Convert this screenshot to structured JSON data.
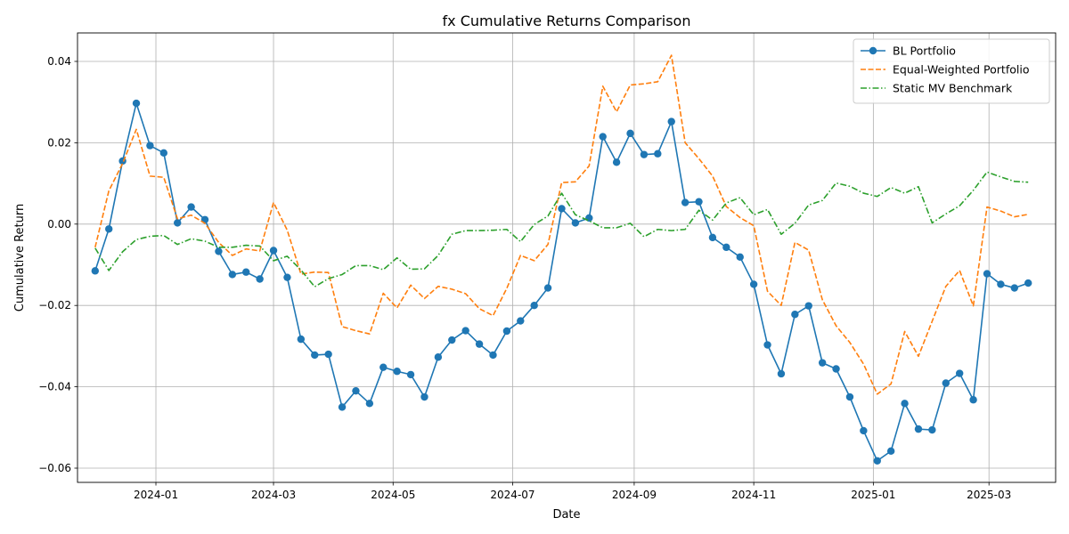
{
  "chart_data": {
    "type": "line",
    "title": "fx Cumulative Returns Comparison",
    "xlabel": "Date",
    "ylabel": "Cumulative Return",
    "grid": true,
    "legend_position": "top-right",
    "xlim": [
      "2023-11-22",
      "2025-04-04"
    ],
    "ylim": [
      -0.0635,
      0.047
    ],
    "x_ticks": [
      "2024-01-01",
      "2024-03-01",
      "2024-05-01",
      "2024-07-01",
      "2024-09-01",
      "2024-11-01",
      "2025-01-01",
      "2025-03-01"
    ],
    "x_tick_labels": [
      "2024-01",
      "2024-03",
      "2024-05",
      "2024-07",
      "2024-09",
      "2024-11",
      "2025-01",
      "2025-03"
    ],
    "y_ticks": [
      -0.06,
      -0.04,
      -0.02,
      0.0,
      0.02,
      0.04
    ],
    "y_tick_labels": [
      "−0.06",
      "−0.04",
      "−0.02",
      "0.00",
      "0.02",
      "0.04"
    ],
    "x": [
      "2023-12-01",
      "2023-12-08",
      "2023-12-15",
      "2023-12-22",
      "2023-12-29",
      "2024-01-05",
      "2024-01-12",
      "2024-01-19",
      "2024-01-26",
      "2024-02-02",
      "2024-02-09",
      "2024-02-16",
      "2024-02-23",
      "2024-03-01",
      "2024-03-08",
      "2024-03-15",
      "2024-03-22",
      "2024-03-29",
      "2024-04-05",
      "2024-04-12",
      "2024-04-19",
      "2024-04-26",
      "2024-05-03",
      "2024-05-10",
      "2024-05-17",
      "2024-05-24",
      "2024-05-31",
      "2024-06-07",
      "2024-06-14",
      "2024-06-21",
      "2024-06-28",
      "2024-07-05",
      "2024-07-12",
      "2024-07-19",
      "2024-07-26",
      "2024-08-02",
      "2024-08-09",
      "2024-08-16",
      "2024-08-23",
      "2024-08-30",
      "2024-09-06",
      "2024-09-13",
      "2024-09-20",
      "2024-09-27",
      "2024-10-04",
      "2024-10-11",
      "2024-10-18",
      "2024-10-25",
      "2024-11-01",
      "2024-11-08",
      "2024-11-15",
      "2024-11-22",
      "2024-11-29",
      "2024-12-06",
      "2024-12-13",
      "2024-12-20",
      "2024-12-27",
      "2025-01-03",
      "2025-01-10",
      "2025-01-17",
      "2025-01-24",
      "2025-01-31",
      "2025-02-07",
      "2025-02-14",
      "2025-02-21",
      "2025-02-28",
      "2025-03-07",
      "2025-03-14",
      "2025-03-21"
    ],
    "series": [
      {
        "name": "BL Portfolio",
        "color": "#1f77b4",
        "style": "solid",
        "marker": "circle",
        "values": [
          -0.0115,
          -0.0012,
          0.0155,
          0.0297,
          0.0193,
          0.0175,
          0.0003,
          0.0042,
          0.0011,
          -0.0067,
          -0.0124,
          -0.0118,
          -0.0135,
          -0.0065,
          -0.0131,
          -0.0283,
          -0.0322,
          -0.032,
          -0.045,
          -0.041,
          -0.0441,
          -0.0352,
          -0.0362,
          -0.037,
          -0.0425,
          -0.0327,
          -0.0285,
          -0.0262,
          -0.0295,
          -0.0322,
          -0.0263,
          -0.0238,
          -0.02,
          -0.0157,
          0.0038,
          0.0003,
          0.0015,
          0.0215,
          0.0152,
          0.0223,
          0.0171,
          0.0173,
          0.0252,
          0.0053,
          0.0055,
          -0.0033,
          -0.0057,
          -0.0081,
          -0.0148,
          -0.0297,
          -0.0368,
          -0.0222,
          -0.0201,
          -0.0341,
          -0.0356,
          -0.0425,
          -0.0508,
          -0.0582,
          -0.0558,
          -0.0441,
          -0.0504,
          -0.0506,
          -0.0391,
          -0.0367,
          -0.0432,
          -0.0122,
          -0.0148,
          -0.0157,
          -0.0145
        ]
      },
      {
        "name": "Equal-Weighted Portfolio",
        "color": "#ff7f0e",
        "style": "dashed",
        "marker": "none",
        "values": [
          -0.0057,
          0.0082,
          0.0149,
          0.0233,
          0.0118,
          0.0115,
          0.0013,
          0.0022,
          0.0002,
          -0.0045,
          -0.0077,
          -0.0061,
          -0.0066,
          0.0053,
          -0.0015,
          -0.0123,
          -0.0118,
          -0.0119,
          -0.0252,
          -0.0262,
          -0.027,
          -0.017,
          -0.0206,
          -0.015,
          -0.0183,
          -0.0153,
          -0.016,
          -0.0171,
          -0.0208,
          -0.0225,
          -0.0158,
          -0.0077,
          -0.009,
          -0.005,
          0.0102,
          0.0104,
          0.0143,
          0.0339,
          0.0276,
          0.0342,
          0.0345,
          0.035,
          0.0415,
          0.02,
          0.0161,
          0.0118,
          0.0043,
          0.0016,
          -0.0004,
          -0.0165,
          -0.02,
          -0.0045,
          -0.0064,
          -0.0186,
          -0.025,
          -0.0291,
          -0.0344,
          -0.0418,
          -0.0393,
          -0.0264,
          -0.0325,
          -0.0239,
          -0.0153,
          -0.0114,
          -0.0201,
          0.0042,
          0.0032,
          0.0018,
          0.0024
        ]
      },
      {
        "name": "Static MV Benchmark",
        "color": "#2ca02c",
        "style": "dashdot",
        "marker": "none",
        "values": [
          -0.0059,
          -0.0114,
          -0.0068,
          -0.0038,
          -0.003,
          -0.0028,
          -0.005,
          -0.0036,
          -0.0042,
          -0.0057,
          -0.0057,
          -0.0052,
          -0.0054,
          -0.009,
          -0.0079,
          -0.0113,
          -0.0154,
          -0.0134,
          -0.0124,
          -0.0102,
          -0.0102,
          -0.0112,
          -0.0083,
          -0.0111,
          -0.011,
          -0.0077,
          -0.0025,
          -0.0016,
          -0.0016,
          -0.0015,
          -0.0013,
          -0.0043,
          -0.0001,
          0.002,
          0.0076,
          0.0023,
          0.0008,
          -0.0009,
          -0.0009,
          0.0002,
          -0.0031,
          -0.0013,
          -0.0016,
          -0.0013,
          0.0034,
          0.001,
          0.0052,
          0.0065,
          0.0023,
          0.0036,
          -0.0025,
          0.0002,
          0.0047,
          0.0058,
          0.0101,
          0.0093,
          0.0076,
          0.0068,
          0.009,
          0.0076,
          0.0092,
          0.0003,
          0.0025,
          0.0045,
          0.0083,
          0.0128,
          0.0116,
          0.0105,
          0.0103
        ]
      }
    ]
  }
}
